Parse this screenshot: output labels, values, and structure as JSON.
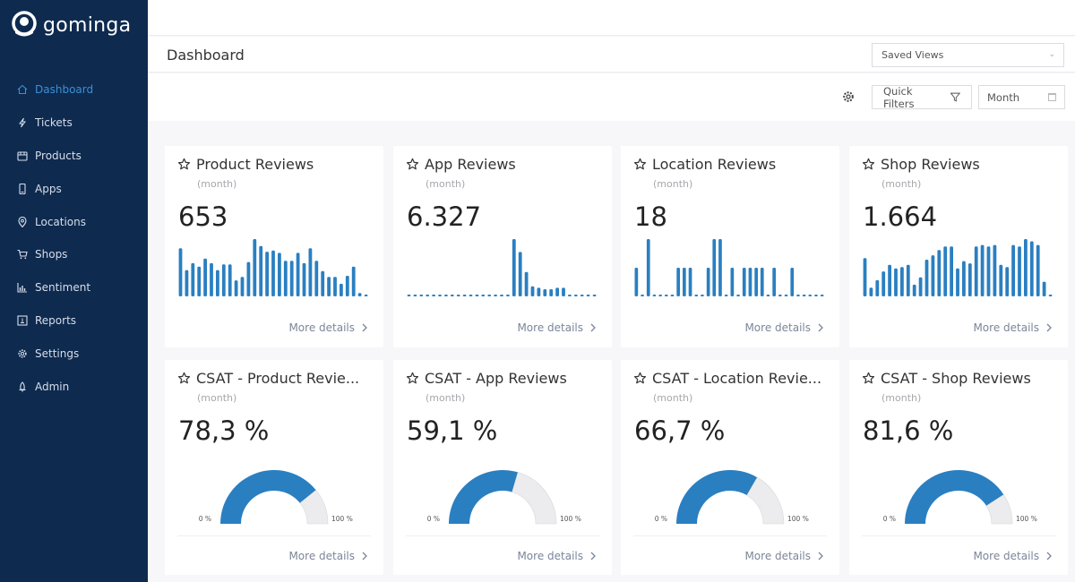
{
  "app": {
    "brand": "gominga"
  },
  "sidebar": {
    "items": [
      {
        "label": "Dashboard",
        "icon": "home-icon",
        "active": true
      },
      {
        "label": "Tickets",
        "icon": "lightning-icon"
      },
      {
        "label": "Products",
        "icon": "box-icon"
      },
      {
        "label": "Apps",
        "icon": "mobile-icon"
      },
      {
        "label": "Locations",
        "icon": "map-pin-icon"
      },
      {
        "label": "Shops",
        "icon": "cart-icon"
      },
      {
        "label": "Sentiment",
        "icon": "bar-chart-icon"
      },
      {
        "label": "Reports",
        "icon": "report-icon"
      },
      {
        "label": "Settings",
        "icon": "gear-icon"
      },
      {
        "label": "Admin",
        "icon": "admin-icon"
      }
    ]
  },
  "header": {
    "title": "Dashboard",
    "saved_views": "Saved Views"
  },
  "filters": {
    "quick_filters": "Quick Filters",
    "period": "Month"
  },
  "colors": {
    "accent": "#2a7fc1",
    "sidebar": "#0e2a4f",
    "gauge_rest": "#ececee"
  },
  "cards": [
    {
      "title": "Product Reviews",
      "period": "(month)",
      "value": "653",
      "more": "More details"
    },
    {
      "title": "App Reviews",
      "period": "(month)",
      "value": "6.327",
      "more": "More details"
    },
    {
      "title": "Location Reviews",
      "period": "(month)",
      "value": "18",
      "more": "More details"
    },
    {
      "title": "Shop Reviews",
      "period": "(month)",
      "value": "1.664",
      "more": "More details"
    },
    {
      "title": "CSAT - Product Revie...",
      "period": "(month)",
      "value": "78,3 %",
      "more": "More details",
      "min_label": "0 %",
      "max_label": "100 %"
    },
    {
      "title": "CSAT - App Reviews",
      "period": "(month)",
      "value": "59,1 %",
      "more": "More details",
      "min_label": "0 %",
      "max_label": "100 %"
    },
    {
      "title": "CSAT - Location Revie...",
      "period": "(month)",
      "value": "66,7 %",
      "more": "More details",
      "min_label": "0 %",
      "max_label": "100 %"
    },
    {
      "title": "CSAT - Shop Reviews",
      "period": "(month)",
      "value": "81,6 %",
      "more": "More details",
      "min_label": "0 %",
      "max_label": "100 %"
    }
  ],
  "chart_data": [
    {
      "type": "bar",
      "title": "Product Reviews",
      "values": [
        42,
        23,
        29,
        26,
        33,
        29,
        23,
        28,
        28,
        14,
        17,
        30,
        50,
        44,
        39,
        40,
        38,
        31,
        31,
        38,
        29,
        42,
        31,
        22,
        17,
        17,
        11,
        18,
        26,
        3,
        1
      ]
    },
    {
      "type": "bar",
      "title": "App Reviews",
      "values": [
        0,
        0,
        0,
        0,
        0,
        0,
        0,
        0,
        0,
        0,
        0,
        1,
        1,
        1,
        1,
        1,
        1,
        40,
        31,
        17,
        7,
        6,
        5,
        5,
        6,
        6,
        0,
        0,
        0,
        0,
        0
      ]
    },
    {
      "type": "bar",
      "title": "Location Reviews",
      "values": [
        1,
        0,
        2,
        0,
        0,
        0,
        0,
        1,
        1,
        1,
        0,
        0,
        1,
        2,
        2,
        0,
        1,
        0,
        1,
        1,
        1,
        1,
        0,
        1,
        0,
        0,
        1,
        0,
        0,
        0,
        0,
        0
      ]
    },
    {
      "type": "bar",
      "title": "Shop Reviews",
      "values": [
        52,
        12,
        22,
        34,
        43,
        38,
        40,
        43,
        16,
        26,
        50,
        56,
        63,
        68,
        68,
        38,
        48,
        45,
        68,
        70,
        68,
        70,
        43,
        40,
        70,
        68,
        78,
        75,
        70,
        20,
        1
      ]
    },
    {
      "type": "gauge",
      "title": "CSAT - Product Reviews",
      "value": 78.3,
      "range": [
        0,
        100
      ]
    },
    {
      "type": "gauge",
      "title": "CSAT - App Reviews",
      "value": 59.1,
      "range": [
        0,
        100
      ]
    },
    {
      "type": "gauge",
      "title": "CSAT - Location Reviews",
      "value": 66.7,
      "range": [
        0,
        100
      ]
    },
    {
      "type": "gauge",
      "title": "CSAT - Shop Reviews",
      "value": 81.6,
      "range": [
        0,
        100
      ]
    }
  ]
}
